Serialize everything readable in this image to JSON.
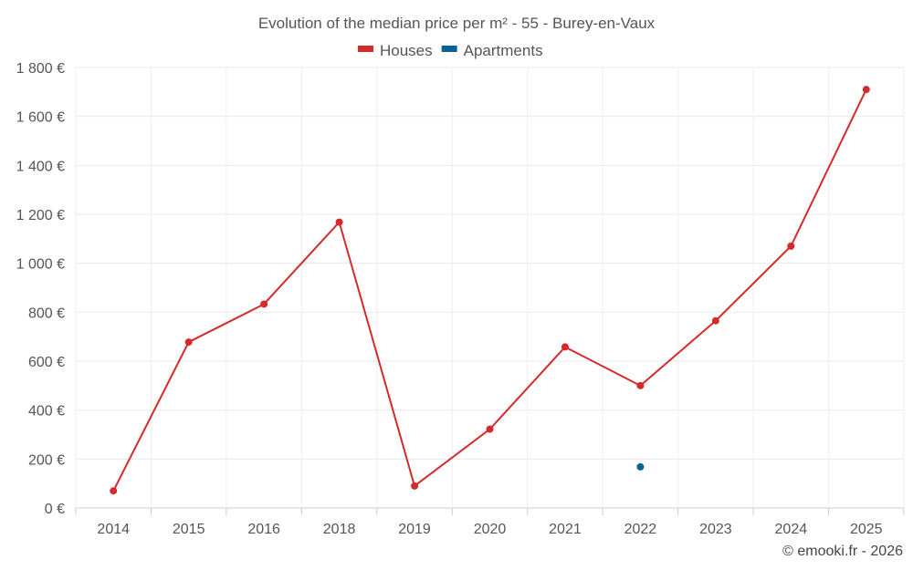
{
  "chart_data": {
    "type": "line",
    "title": "Evolution of the median price per m² - 55 - Burey-en-Vaux",
    "categories": [
      "2014",
      "2015",
      "2016",
      "2018",
      "2019",
      "2020",
      "2021",
      "2022",
      "2023",
      "2024",
      "2025"
    ],
    "series": [
      {
        "name": "Houses",
        "color": "#d62a2a",
        "values": [
          70,
          678,
          833,
          1168,
          90,
          322,
          658,
          500,
          765,
          1070,
          1710
        ]
      },
      {
        "name": "Apartments",
        "color": "#06649a",
        "values": [
          null,
          null,
          null,
          null,
          null,
          null,
          null,
          168,
          null,
          null,
          null
        ]
      }
    ],
    "ylim": [
      0,
      1800
    ],
    "yticks": [
      0,
      200,
      400,
      600,
      800,
      1000,
      1200,
      1400,
      1600,
      1800
    ],
    "ytick_labels": [
      "0 €",
      "200 €",
      "400 €",
      "600 €",
      "800 €",
      "1 000 €",
      "1 200 €",
      "1 400 €",
      "1 600 €",
      "1 800 €"
    ],
    "xlabel": "",
    "ylabel": "",
    "grid": true,
    "legend_position": "top-center"
  },
  "credit": "© emooki.fr - 2026"
}
